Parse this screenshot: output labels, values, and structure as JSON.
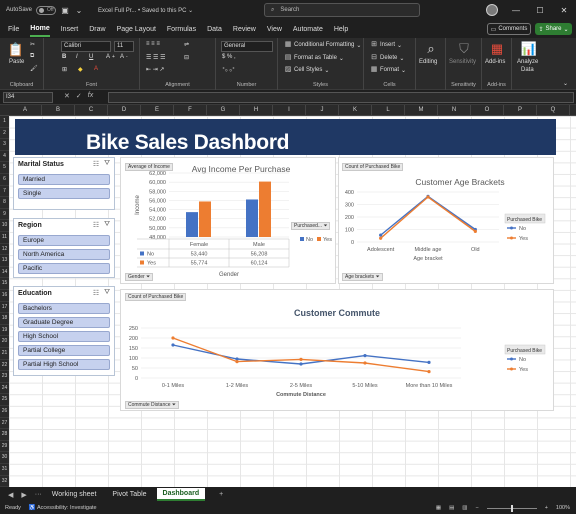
{
  "titlebar": {
    "autosave_label": "AutoSave",
    "autosave_state": "Off",
    "file_title": "Excel Full Pr...",
    "save_status": "Saved to this PC",
    "search_placeholder": "Search"
  },
  "menu": {
    "tabs": [
      "File",
      "Home",
      "Insert",
      "Draw",
      "Page Layout",
      "Formulas",
      "Data",
      "Review",
      "View",
      "Automate",
      "Help"
    ],
    "active": "Home",
    "comments_label": "Comments",
    "share_label": "Share"
  },
  "ribbon": {
    "paste_label": "Paste",
    "clipboard_label": "Clipboard",
    "font_name": "Calibri",
    "font_size": "11",
    "font_label": "Font",
    "alignment_label": "Alignment",
    "number_format": "General",
    "number_label": "Number",
    "conditional_formatting": "Conditional Formatting",
    "format_as_table": "Format as Table",
    "cell_styles": "Cell Styles",
    "styles_label": "Styles",
    "insert_label": "Insert",
    "delete_label": "Delete",
    "format_label": "Format",
    "cells_label": "Cells",
    "editing_label": "Editing",
    "sensitivity_label": "Sensitivity",
    "addins_label": "Add-ins",
    "analyze_data_line1": "Analyze",
    "analyze_data_line2": "Data"
  },
  "formula_bar": {
    "name_box": "I34",
    "fx_label": "fx",
    "value": ""
  },
  "columns": [
    "A",
    "B",
    "C",
    "D",
    "E",
    "F",
    "G",
    "H",
    "I",
    "J",
    "K",
    "L",
    "M",
    "N",
    "O",
    "P",
    "Q"
  ],
  "rows": [
    "1",
    "2",
    "3",
    "4",
    "5",
    "6",
    "7",
    "8",
    "9",
    "10",
    "11",
    "12",
    "13",
    "14",
    "15",
    "16",
    "17",
    "18",
    "19",
    "20",
    "21",
    "22",
    "23",
    "24",
    "25",
    "26",
    "27",
    "28",
    "29",
    "30",
    "31",
    "32"
  ],
  "dashboard": {
    "title": "Bike Sales Dashbord",
    "slicers": [
      {
        "title": "Marital Status",
        "items": [
          "Married",
          "Single"
        ]
      },
      {
        "title": "Region",
        "items": [
          "Europe",
          "North America",
          "Pacific"
        ]
      },
      {
        "title": "Education",
        "items": [
          "Bachelors",
          "Graduate Degree",
          "High School",
          "Partial College",
          "Partial High School"
        ]
      }
    ]
  },
  "income_chart": {
    "field_button": "Average of Income",
    "legend_button": "Purchased...",
    "axis_button": "Gender",
    "legend": [
      "No",
      "Yes"
    ],
    "table_rows": [
      {
        "label": "No",
        "values": [
          "53,440",
          "56,208"
        ]
      },
      {
        "label": "Yes",
        "values": [
          "55,774",
          "60,124"
        ]
      }
    ]
  },
  "age_chart": {
    "field_button": "Count of Purchased Bike",
    "axis_button": "Age brackets",
    "legend_title": "Purchased Bike",
    "legend": [
      "No",
      "Yes"
    ]
  },
  "commute_chart": {
    "field_button": "Count of Purchased Bike",
    "axis_button": "Commute Distance",
    "legend_title": "Purchased Bike",
    "legend": [
      "No",
      "Yes"
    ]
  },
  "chart_data": [
    {
      "type": "bar",
      "title": "Avg Income Per Purchase",
      "xlabel": "Gender",
      "ylabel": "Income",
      "categories": [
        "Female",
        "Male"
      ],
      "ylim": [
        48000,
        62000
      ],
      "yticks": [
        "48,000",
        "50,000",
        "52,000",
        "54,000",
        "56,000",
        "58,000",
        "60,000",
        "62,000"
      ],
      "series": [
        {
          "name": "No",
          "values": [
            53440,
            56208
          ],
          "color": "#4472c4"
        },
        {
          "name": "Yes",
          "values": [
            55774,
            60124
          ],
          "color": "#ed7d31"
        }
      ],
      "legend": "right"
    },
    {
      "type": "line",
      "title": "Customer Age Brackets",
      "xlabel": "Age bracket",
      "ylabel": "",
      "categories": [
        "Adolescent",
        "Middle age",
        "Old"
      ],
      "ylim": [
        0,
        400
      ],
      "yticks": [
        "0",
        "100",
        "200",
        "300",
        "400"
      ],
      "series": [
        {
          "name": "No",
          "values": [
            55,
            365,
            100
          ],
          "color": "#4472c4"
        },
        {
          "name": "Yes",
          "values": [
            30,
            360,
            85
          ],
          "color": "#ed7d31"
        }
      ],
      "legend": "right"
    },
    {
      "type": "line",
      "title": "Customer Commute",
      "xlabel": "Commute Distance",
      "ylabel": "",
      "categories": [
        "0-1 Miles",
        "1-2 Miles",
        "2-5 Miles",
        "5-10 Miles",
        "More than 10 Miles"
      ],
      "ylim": [
        0,
        250
      ],
      "yticks": [
        "0",
        "50",
        "100",
        "150",
        "200",
        "250"
      ],
      "series": [
        {
          "name": "No",
          "values": [
            165,
            95,
            70,
            112,
            78
          ],
          "color": "#4472c4"
        },
        {
          "name": "Yes",
          "values": [
            200,
            82,
            93,
            75,
            32
          ],
          "color": "#ed7d31"
        }
      ],
      "legend": "right"
    }
  ],
  "sheets": {
    "tabs": [
      "Working sheet",
      "Pivot Table",
      "Dashboard"
    ],
    "active": "Dashboard"
  },
  "status": {
    "ready": "Ready",
    "accessibility": "Accessibility: Investigate",
    "zoom": "100%"
  }
}
